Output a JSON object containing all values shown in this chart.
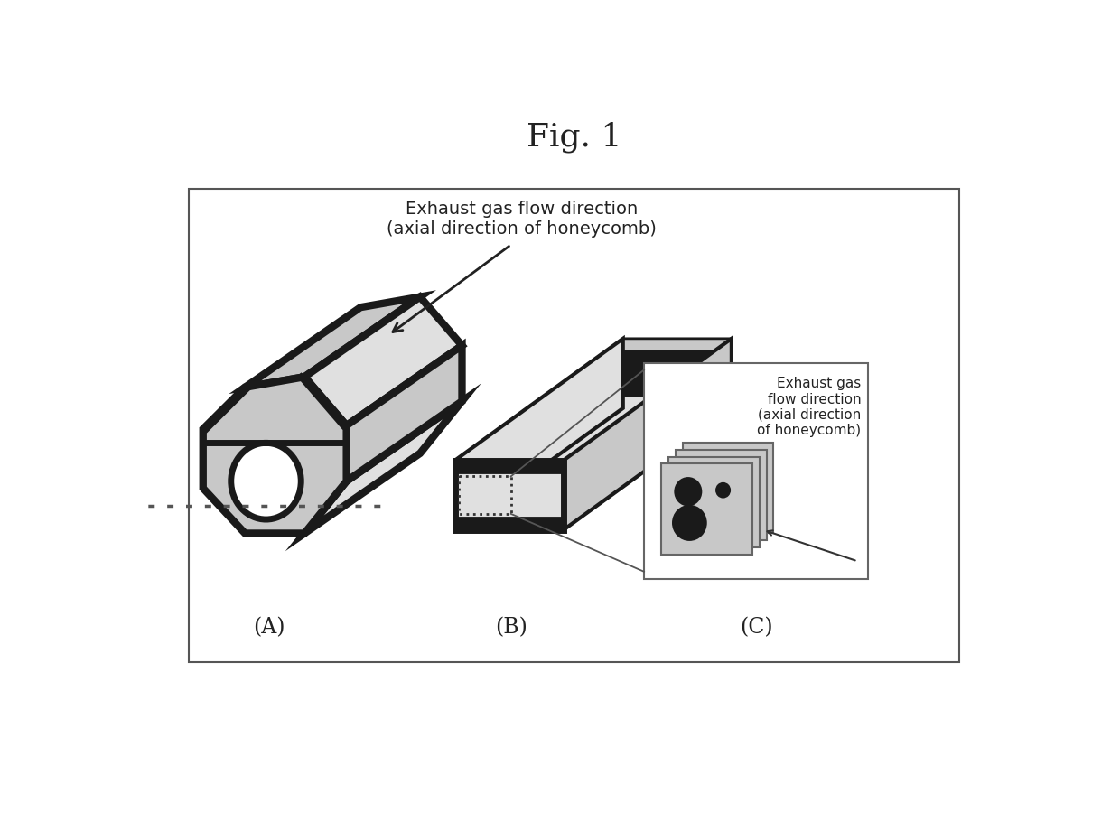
{
  "title": "Fig. 1",
  "title_fontsize": 26,
  "background_color": "#ffffff",
  "box_edge_color": "#555555",
  "label_A": "(A)",
  "label_B": "(B)",
  "label_C": "(C)",
  "arrow_text_top": "Exhaust gas flow direction\n(axial direction of honeycomb)",
  "arrow_text_right": "Exhaust gas\nflow direction\n(axial direction\nof honeycomb)",
  "gray_fill": "#c8c8c8",
  "dark_fill": "#1a1a1a",
  "light_gray": "#e0e0e0",
  "dark_gray": "#888888",
  "lw_thick": 6,
  "lw_medium": 3,
  "lw_thin": 1.5
}
